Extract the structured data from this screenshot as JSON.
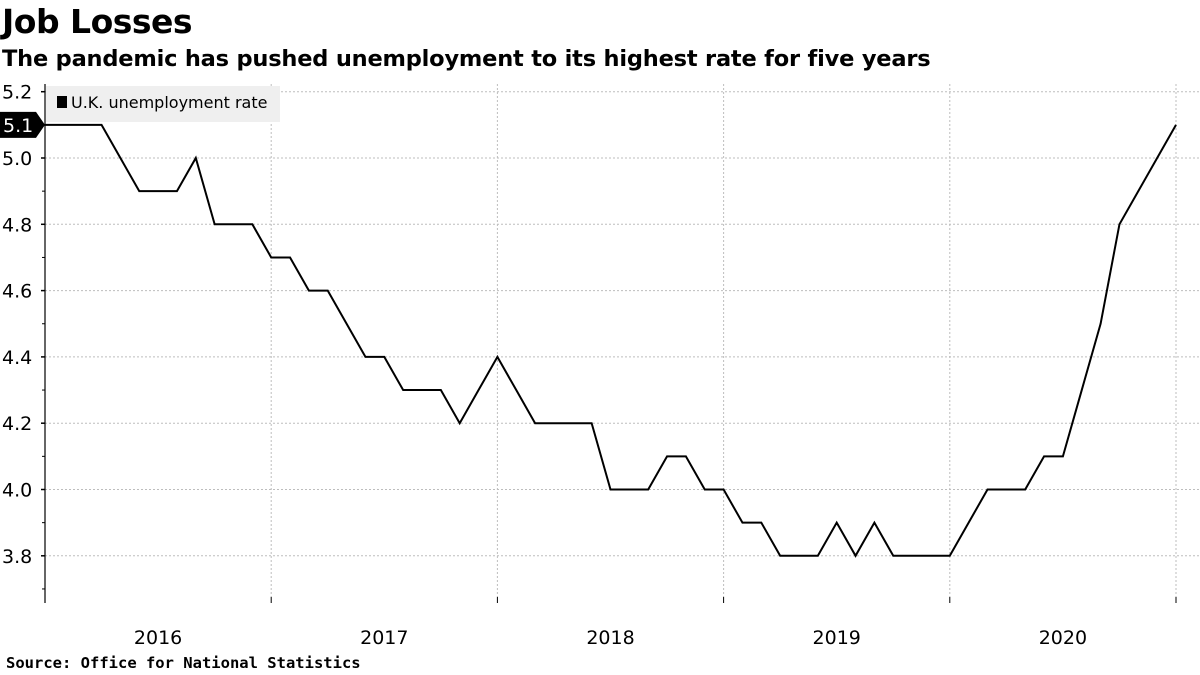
{
  "title": "Job Losses",
  "subtitle": "The pandemic has pushed unemployment to its highest rate for five years",
  "source": "Source:  Office for National Statistics",
  "chart_data": {
    "type": "line",
    "title": "Job Losses",
    "subtitle": "The pandemic has pushed unemployment to its highest rate for five years",
    "xlabel": "",
    "ylabel": "",
    "x_unit": "months from start of 2016 axis segment",
    "x": [
      0,
      1,
      2,
      3,
      4,
      5,
      6,
      7,
      8,
      9,
      10,
      11,
      12,
      13,
      14,
      15,
      16,
      17,
      18,
      19,
      20,
      21,
      22,
      23,
      24,
      25,
      26,
      27,
      28,
      29,
      30,
      31,
      32,
      33,
      34,
      35,
      36,
      37,
      38,
      39,
      40,
      41,
      42,
      43,
      44,
      45,
      46,
      47,
      48,
      49,
      50,
      51,
      52,
      53,
      54,
      55,
      56,
      57,
      58,
      59,
      60
    ],
    "series": [
      {
        "name": "U.K. unemployment rate",
        "color": "#000000",
        "values": [
          5.1,
          5.1,
          5.1,
          5.1,
          5.0,
          4.9,
          4.9,
          4.9,
          5.0,
          4.8,
          4.8,
          4.8,
          4.7,
          4.7,
          4.6,
          4.6,
          4.5,
          4.4,
          4.4,
          4.3,
          4.3,
          4.3,
          4.2,
          4.3,
          4.4,
          4.3,
          4.2,
          4.2,
          4.2,
          4.2,
          4.0,
          4.0,
          4.0,
          4.1,
          4.1,
          4.0,
          4.0,
          3.9,
          3.9,
          3.8,
          3.8,
          3.8,
          3.9,
          3.8,
          3.9,
          3.8,
          3.8,
          3.8,
          3.8,
          3.9,
          4.0,
          4.0,
          4.0,
          4.1,
          4.1,
          4.3,
          4.5,
          4.8,
          4.9,
          5.0,
          5.1
        ]
      }
    ],
    "last_value_label": "5.1",
    "xticks": [
      {
        "label": "2016",
        "start": 0,
        "end": 12
      },
      {
        "label": "2017",
        "start": 12,
        "end": 24
      },
      {
        "label": "2018",
        "start": 24,
        "end": 36
      },
      {
        "label": "2019",
        "start": 36,
        "end": 48
      },
      {
        "label": "2020",
        "start": 48,
        "end": 60
      }
    ],
    "yticks": [
      "3.8",
      "4.0",
      "4.2",
      "4.4",
      "4.6",
      "4.8",
      "5.0",
      "5.2"
    ],
    "ylim": [
      3.68,
      5.22
    ],
    "xlim": [
      0,
      60
    ],
    "grid": true,
    "legend": "top-left"
  }
}
